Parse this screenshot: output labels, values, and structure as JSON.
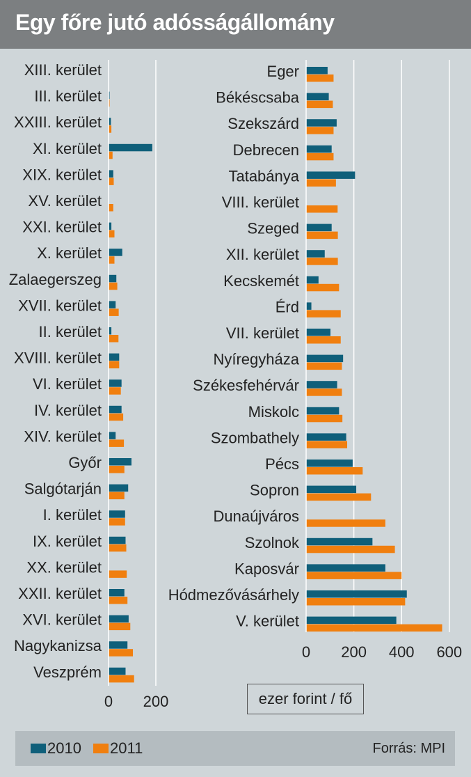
{
  "title": "Egy főre jutó adósságállomány",
  "unit_label": "ezer forint / fő",
  "source": "Forrás: MPI",
  "colors": {
    "series_2010": "#0f5f7a",
    "series_2011": "#f07f0f",
    "grid": "#ffffff",
    "background": "#cfd6d9",
    "title_bar": "#7c7f81",
    "legend_bar": "#b4bcc0"
  },
  "legend": [
    {
      "label": "2010",
      "color": "#0f5f7a"
    },
    {
      "label": "2011",
      "color": "#f07f0f"
    }
  ],
  "chart_data": [
    {
      "type": "bar",
      "orientation": "horizontal",
      "xlim": [
        0,
        200
      ],
      "xticks": [
        0,
        200
      ],
      "grid": true,
      "categories": [
        "XIII. kerület",
        "III. kerület",
        "XXIII. kerület",
        "XI. kerület",
        "XIX. kerület",
        "XV. kerület",
        "XXI. kerület",
        "X. kerület",
        "Zalaegerszeg",
        "XVII. kerület",
        "II. kerület",
        "XVIII. kerület",
        "VI. kerület",
        "IV. kerület",
        "XIV. kerület",
        "Győr",
        "Salgótarján",
        "I. kerület",
        "IX. kerület",
        "XX. kerület",
        "XXII. kerület",
        "XVI. kerület",
        "Nagykanizsa",
        "Veszprém"
      ],
      "series": [
        {
          "name": "2010",
          "values": [
            0,
            3,
            10,
            185,
            20,
            null,
            12,
            58,
            33,
            30,
            12,
            45,
            55,
            55,
            30,
            97,
            83,
            70,
            72,
            null,
            67,
            85,
            80,
            72
          ]
        },
        {
          "name": "2011",
          "values": [
            0,
            3,
            12,
            17,
            22,
            20,
            25,
            25,
            37,
            43,
            42,
            45,
            52,
            62,
            65,
            67,
            67,
            70,
            75,
            77,
            80,
            92,
            103,
            108
          ]
        }
      ]
    },
    {
      "type": "bar",
      "orientation": "horizontal",
      "xlim": [
        0,
        600
      ],
      "xticks": [
        0,
        200,
        400,
        600
      ],
      "grid": true,
      "categories": [
        "Eger",
        "Békéscsaba",
        "Szekszárd",
        "Debrecen",
        "Tatabánya",
        "VIII. kerület",
        "Szeged",
        "XII. kerület",
        "Kecskemét",
        "Érd",
        "VII. kerület",
        "Nyíregyháza",
        "Székesfehérvár",
        "Miskolc",
        "Szombathely",
        "Pécs",
        "Sopron",
        "Dunaújváros",
        "Szolnok",
        "Kaposvár",
        "Hódmezővásárhely",
        "V. kerület"
      ],
      "series": [
        {
          "name": "2010",
          "values": [
            90,
            95,
            128,
            107,
            205,
            null,
            107,
            78,
            52,
            22,
            102,
            155,
            130,
            138,
            168,
            195,
            210,
            null,
            278,
            332,
            422,
            378
          ]
        },
        {
          "name": "2011",
          "values": [
            115,
            112,
            115,
            115,
            125,
            132,
            133,
            133,
            138,
            145,
            145,
            150,
            150,
            152,
            172,
            237,
            272,
            332,
            372,
            400,
            415,
            570
          ]
        }
      ]
    }
  ]
}
